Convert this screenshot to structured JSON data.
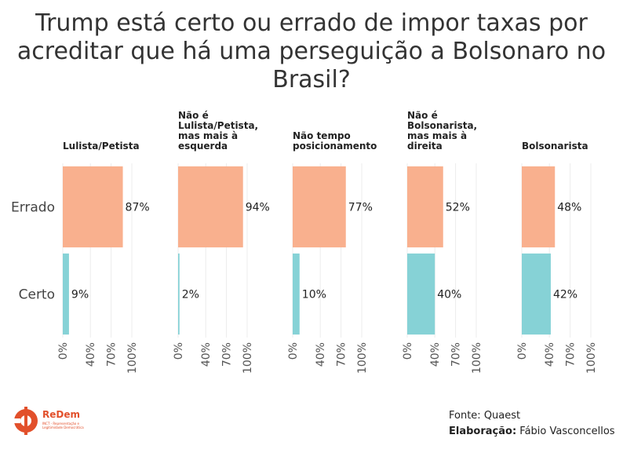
{
  "title_lines": [
    "Trump está certo ou errado de impor taxas por",
    "acreditar que há uma perseguição a Bolsonaro no",
    "Brasil?"
  ],
  "chart_data": {
    "type": "bar",
    "orientation": "horizontal",
    "facets": [
      {
        "label_lines": [
          "Lulista/Petista"
        ],
        "values": {
          "Errado": 87,
          "Certo": 9
        }
      },
      {
        "label_lines": [
          "Não é",
          "Lulista/Petista,",
          "mas mais à",
          "esquerda"
        ],
        "values": {
          "Errado": 94,
          "Certo": 2
        }
      },
      {
        "label_lines": [
          "Não tempo",
          "posicionamento"
        ],
        "values": {
          "Errado": 77,
          "Certo": 10
        }
      },
      {
        "label_lines": [
          "Não é",
          "Bolsonarista,",
          "mas mais à",
          "direita"
        ],
        "values": {
          "Errado": 52,
          "Certo": 40
        }
      },
      {
        "label_lines": [
          "Bolsonarista"
        ],
        "values": {
          "Errado": 48,
          "Certo": 42
        }
      }
    ],
    "categories": [
      "Errado",
      "Certo"
    ],
    "colors": {
      "Errado": "#f9b08e",
      "Certo": "#86d2d6"
    },
    "xlim": [
      0,
      100
    ],
    "ticks": [
      0,
      40,
      70,
      100
    ],
    "tick_labels": [
      "0%",
      "40%",
      "70%",
      "100%"
    ],
    "value_suffix": "%",
    "grid": true
  },
  "footer": {
    "source_text": "Fonte: Quaest",
    "credit_label": "Elaboração:",
    "credit_name": "Fábio Vasconcellos"
  },
  "logo": {
    "name": "ReDem",
    "subtitle": "INCT - Representação e Legitimidade Democrática",
    "color": "#e2502b"
  }
}
